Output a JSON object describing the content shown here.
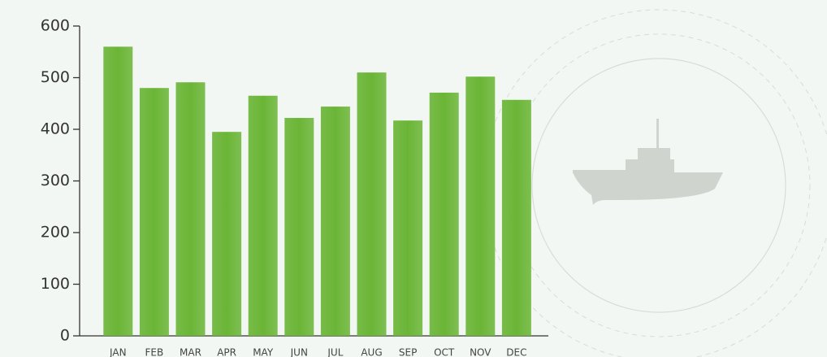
{
  "chart_data": {
    "type": "bar",
    "categories": [
      "JAN",
      "FEB",
      "MAR",
      "APR",
      "MAY",
      "JUN",
      "JUL",
      "AUG",
      "SEP",
      "OCT",
      "NOV",
      "DEC"
    ],
    "values": [
      560,
      480,
      491,
      395,
      465,
      422,
      444,
      510,
      417,
      471,
      502,
      457
    ],
    "color": "#6ab536",
    "ylim": [
      0,
      600
    ],
    "yticks": [
      0,
      100,
      200,
      300,
      400,
      500,
      600
    ]
  }
}
